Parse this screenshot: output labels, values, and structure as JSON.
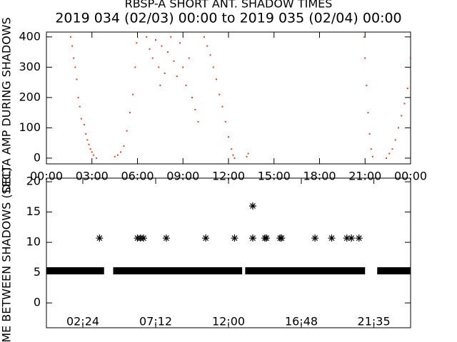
{
  "chart_data": [
    {
      "type": "scatter",
      "title": "RBSP-A SHORT ANT. SHADOW TIMES",
      "subtitle": "2019 034 (02/03) 00:00 to 2019 035 (02/04) 00:00",
      "y_label": "DELTA AMP DURING SHADOWS",
      "xlim": [
        0,
        24
      ],
      "ylim": [
        -19,
        416
      ],
      "xticks": [
        {
          "value": 0,
          "label": "00:00"
        },
        {
          "value": 3,
          "label": "03:00"
        },
        {
          "value": 6,
          "label": "06:00"
        },
        {
          "value": 9,
          "label": "09:00"
        },
        {
          "value": 12,
          "label": "12:00"
        },
        {
          "value": 15,
          "label": "15:00"
        },
        {
          "value": 18,
          "label": "18:00"
        },
        {
          "value": 21,
          "label": "21:00"
        },
        {
          "value": 24,
          "label": "00:00"
        }
      ],
      "yticks": [
        0,
        100,
        200,
        300,
        400
      ],
      "color": "#e0401e",
      "x": [
        1.6,
        1.7,
        1.8,
        1.9,
        2.0,
        2.1,
        2.2,
        2.3,
        2.5,
        2.6,
        2.7,
        2.8,
        2.9,
        3.0,
        3.1,
        3.3,
        4.5,
        4.7,
        4.9,
        5.1,
        5.3,
        5.5,
        5.7,
        5.85,
        5.95,
        6.6,
        6.8,
        7.0,
        7.2,
        7.4,
        7.5,
        7.6,
        7.8,
        8.0,
        8.2,
        8.4,
        8.6,
        8.8,
        9.0,
        9.2,
        9.4,
        9.6,
        9.8,
        10.0,
        10.4,
        10.6,
        10.8,
        11.0,
        11.2,
        11.4,
        11.6,
        11.8,
        12.0,
        12.2,
        12.3,
        12.4,
        13.2,
        13.3,
        20.95,
        21.0,
        21.1,
        21.2,
        21.3,
        21.4,
        21.5,
        22.4,
        22.6,
        22.8,
        23.0,
        23.2,
        23.4,
        23.6,
        23.8,
        24.0
      ],
      "values": [
        400,
        370,
        330,
        300,
        260,
        200,
        170,
        130,
        110,
        80,
        60,
        45,
        30,
        20,
        10,
        0,
        5,
        10,
        20,
        40,
        90,
        150,
        210,
        300,
        380,
        400,
        360,
        330,
        390,
        300,
        240,
        370,
        280,
        350,
        400,
        320,
        270,
        380,
        300,
        240,
        330,
        200,
        160,
        120,
        400,
        370,
        340,
        300,
        260,
        210,
        170,
        120,
        70,
        30,
        10,
        0,
        5,
        15,
        400,
        330,
        240,
        150,
        80,
        30,
        5,
        0,
        15,
        30,
        60,
        100,
        140,
        180,
        230,
        330
      ]
    },
    {
      "type": "scatter",
      "y_label": "TIME BETWEEN SHADOWS (SEC)",
      "xlim": [
        0,
        24
      ],
      "ylim": [
        -4.1,
        20.6
      ],
      "xticks": [
        {
          "value": 2.4,
          "label": "02:24"
        },
        {
          "value": 7.2,
          "label": "07:12"
        },
        {
          "value": 12,
          "label": "12:00"
        },
        {
          "value": 16.8,
          "label": "16:48"
        },
        {
          "value": 21.58,
          "label": "21:35"
        }
      ],
      "yticks": [
        0,
        5,
        10,
        15,
        20
      ],
      "color": "#000000",
      "x": [
        3.5,
        6.0,
        6.2,
        6.4,
        7.9,
        10.5,
        12.4,
        13.6,
        13.6,
        14.4,
        14.5,
        15.4,
        15.5,
        17.7,
        18.8,
        19.8,
        20.1,
        20.6
      ],
      "values": [
        10.7,
        10.7,
        10.7,
        10.7,
        10.7,
        10.7,
        10.7,
        10.7,
        16,
        10.7,
        10.7,
        10.7,
        10.7,
        10.7,
        10.7,
        10.7,
        10.7,
        10.7
      ],
      "band": {
        "x_start": [
          0,
          4.4,
          13.1,
          21.8
        ],
        "x_end": [
          3.8,
          12.9,
          21.0,
          24
        ],
        "values": [
          5.3,
          5.3,
          5.3,
          5.3
        ]
      }
    }
  ]
}
